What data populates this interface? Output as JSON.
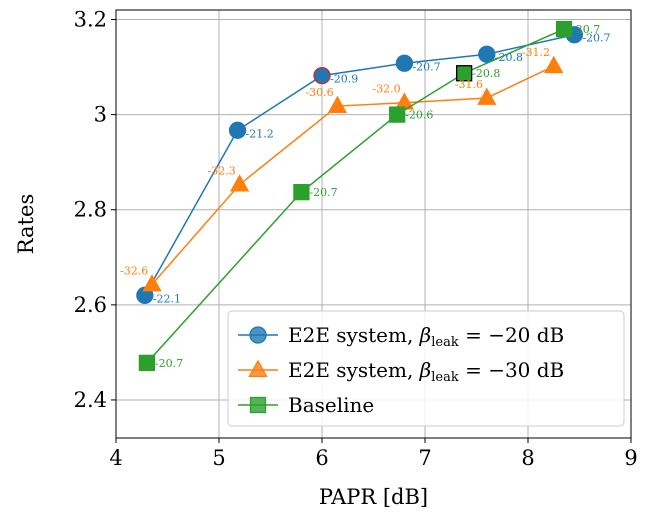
{
  "chart_data": {
    "type": "line",
    "title": "",
    "xlabel": "PAPR [dB]",
    "ylabel": "Rates",
    "xlim": [
      4,
      9
    ],
    "ylim": [
      2.32,
      3.22
    ],
    "xticks": [
      4,
      5,
      6,
      7,
      8,
      9
    ],
    "yticks": [
      2.4,
      2.6,
      2.8,
      3,
      3.2
    ],
    "xtick_labels": [
      "4",
      "5",
      "6",
      "7",
      "8",
      "9"
    ],
    "ytick_labels": [
      "2.4",
      "2.6",
      "2.8",
      "3",
      "3.2"
    ],
    "grid": true,
    "legend_position": "lower-right",
    "series": [
      {
        "key": "e2e20",
        "legend": {
          "prefix": "E2E system, ",
          "symbol": "β",
          "subscript": "leak",
          "suffix": " = −20 dB"
        },
        "color": "#1f77b4",
        "marker": "circle",
        "x": [
          4.28,
          5.18,
          6.0,
          6.8,
          7.6,
          8.45
        ],
        "y": [
          2.62,
          2.967,
          3.082,
          3.108,
          3.127,
          3.168
        ],
        "labels": [
          "-22.1",
          "-21.2",
          "-20.9",
          "-20.7",
          "-20.8",
          "-20.7"
        ],
        "highlight_index": 2,
        "highlight_color": "#d62728"
      },
      {
        "key": "e2e30",
        "legend": {
          "prefix": "E2E system, ",
          "symbol": "β",
          "subscript": "leak",
          "suffix": " = −30 dB"
        },
        "color": "#ff7f0e",
        "marker": "triangle",
        "x": [
          4.35,
          5.2,
          6.15,
          6.8,
          7.6,
          8.25
        ],
        "y": [
          2.643,
          2.853,
          3.018,
          3.025,
          3.035,
          3.102
        ],
        "labels": [
          "-32.6",
          "-32.3",
          "-30.6",
          "-32.0",
          "-31.6",
          "-31.2"
        ]
      },
      {
        "key": "base",
        "legend": {
          "prefix": "Baseline",
          "symbol": "",
          "subscript": "",
          "suffix": ""
        },
        "color": "#2ca02c",
        "marker": "square",
        "x": [
          4.3,
          5.8,
          6.73,
          7.38,
          8.35
        ],
        "y": [
          2.478,
          2.837,
          3.0,
          3.087,
          3.18
        ],
        "labels": [
          "-20.7",
          "-20.7",
          "-20.6",
          "-20.8",
          "-20.7"
        ],
        "highlight_index": 3,
        "highlight_color": "#000000"
      }
    ]
  }
}
